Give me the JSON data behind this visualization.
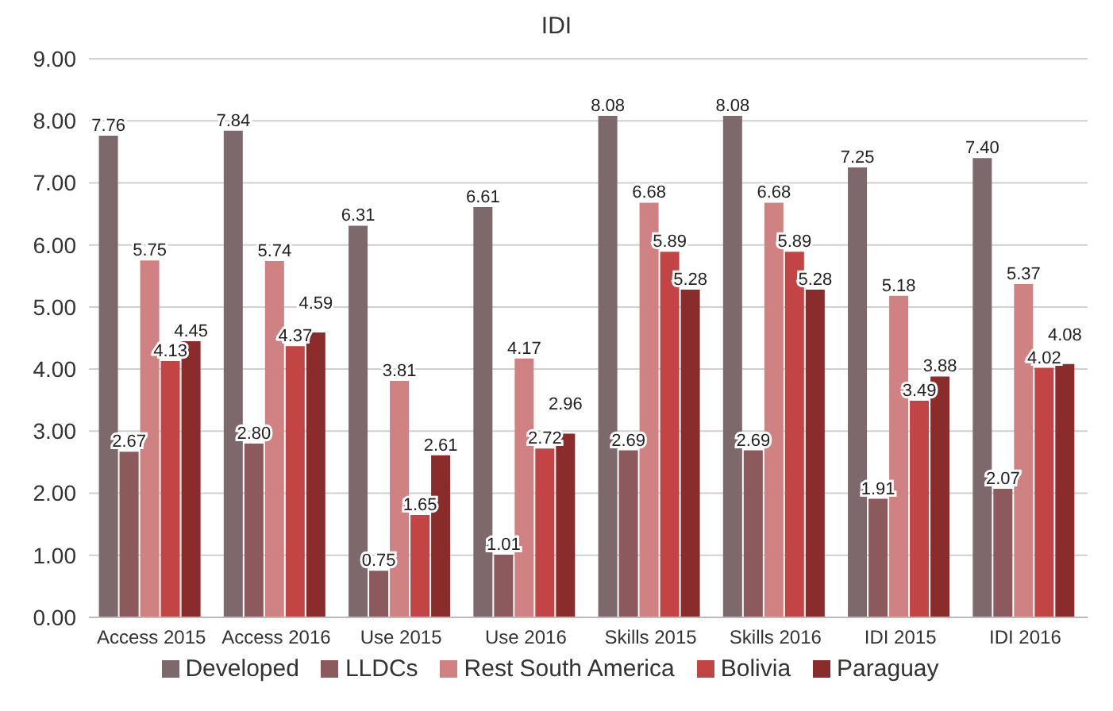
{
  "chart_data": {
    "type": "bar",
    "title": "IDI",
    "categories": [
      "Access 2015",
      "Access 2016",
      "Use 2015",
      "Use 2016",
      "Skills 2015",
      "Skills 2016",
      "IDI 2015",
      "IDI 2016"
    ],
    "series": [
      {
        "name": "Developed",
        "color": "#7d686c",
        "values": [
          7.76,
          7.84,
          6.31,
          6.61,
          8.08,
          8.08,
          7.25,
          7.4
        ],
        "value_labels": [
          "7.76",
          "7.84",
          "6.31",
          "6.61",
          "8.08",
          "8.08",
          "7.25",
          "7.40"
        ]
      },
      {
        "name": "LLDCs",
        "color": "#8c5a5c",
        "values": [
          2.67,
          2.8,
          0.75,
          1.01,
          2.69,
          2.69,
          1.91,
          2.07
        ],
        "value_labels": [
          "2.67",
          "2.80",
          "0.75",
          "1.01",
          "2.69",
          "2.69",
          "1.91",
          "2.07"
        ]
      },
      {
        "name": "Rest South America",
        "color": "#d08282",
        "values": [
          5.75,
          5.74,
          3.81,
          4.17,
          6.68,
          6.68,
          5.18,
          5.37
        ],
        "value_labels": [
          "5.75",
          "5.74",
          "3.81",
          "4.17",
          "6.68",
          "6.68",
          "5.18",
          "5.37"
        ]
      },
      {
        "name": "Bolivia",
        "color": "#c24444",
        "values": [
          4.13,
          4.37,
          1.65,
          2.72,
          5.89,
          5.89,
          3.49,
          4.02
        ],
        "value_labels": [
          "4.13",
          "4.37",
          "1.65",
          "2.72",
          "5.89",
          "5.89",
          "3.49",
          "4.02"
        ]
      },
      {
        "name": "Paraguay",
        "color": "#8a2c2c",
        "values": [
          4.45,
          4.59,
          2.61,
          2.96,
          5.28,
          5.28,
          3.88,
          4.08
        ],
        "value_labels": [
          "4.45",
          "4.59",
          "2.61",
          "2.96",
          "5.28",
          "5.28",
          "3.88",
          "4.08"
        ]
      }
    ],
    "ylim": [
      0,
      9
    ],
    "yticks": [
      {
        "value": 0,
        "label": "0.00"
      },
      {
        "value": 1,
        "label": "1.00"
      },
      {
        "value": 2,
        "label": "2.00"
      },
      {
        "value": 3,
        "label": "3.00"
      },
      {
        "value": 4,
        "label": "4.00"
      },
      {
        "value": 5,
        "label": "5.00"
      },
      {
        "value": 6,
        "label": "6.00"
      },
      {
        "value": 7,
        "label": "7.00"
      },
      {
        "value": 8,
        "label": "8.00"
      },
      {
        "value": 9,
        "label": "9.00"
      }
    ],
    "grid": "y",
    "legend": "bottom"
  }
}
